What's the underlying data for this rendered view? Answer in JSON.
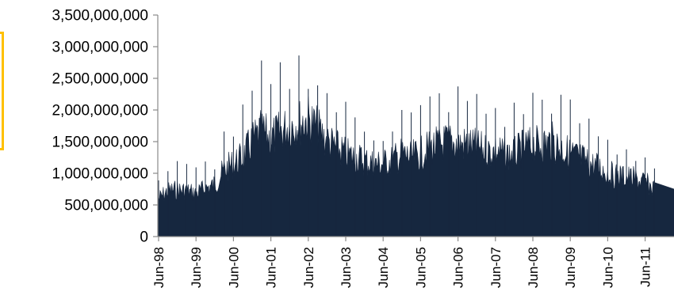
{
  "colors": {
    "series_fill": "#16273f",
    "axis": "#8a8a8a",
    "bracket": "#ffc000"
  },
  "chart_data": {
    "type": "area",
    "title": "",
    "xlabel": "",
    "ylabel": "",
    "ylim": [
      0,
      3500000000
    ],
    "y_ticks": [
      0,
      500000000,
      1000000000,
      1500000000,
      2000000000,
      2500000000,
      3000000000,
      3500000000
    ],
    "y_tick_labels": [
      "0",
      "500,000,000",
      "1,000,000,000",
      "1,500,000,000",
      "2,000,000,000",
      "2,500,000,000",
      "3,000,000,000",
      "3,500,000,000"
    ],
    "x_tick_labels": [
      "Jun-98",
      "Jun-99",
      "Jun-00",
      "Jun-01",
      "Jun-02",
      "Jun-03",
      "Jun-04",
      "Jun-05",
      "Jun-06",
      "Jun-07",
      "Jun-08",
      "Jun-09",
      "Jun-10",
      "Jun-11"
    ],
    "grid": false,
    "legend": "none",
    "series": [
      {
        "x": [
          "Jun-98",
          "Sep-98",
          "Dec-98",
          "Mar-99",
          "Jun-99",
          "Sep-99",
          "Dec-99",
          "Mar-00",
          "Jun-00",
          "Sep-00",
          "Dec-00",
          "Mar-01",
          "Jun-01",
          "Sep-01",
          "Dec-01",
          "Mar-02",
          "Jun-02",
          "Sep-02",
          "Dec-02",
          "Mar-03",
          "Jun-03",
          "Sep-03",
          "Dec-03",
          "Mar-04",
          "Jun-04",
          "Sep-04",
          "Dec-04",
          "Mar-05",
          "Jun-05",
          "Sep-05",
          "Dec-05",
          "Mar-06",
          "Jun-06",
          "Sep-06",
          "Dec-06",
          "Mar-07",
          "Jun-07",
          "Sep-07",
          "Dec-07",
          "Mar-08",
          "Jun-08",
          "Sep-08",
          "Dec-08",
          "Mar-09",
          "Jun-09",
          "Sep-09",
          "Dec-09",
          "Mar-10",
          "Jun-10",
          "Sep-10",
          "Dec-10",
          "Mar-11",
          "Jun-11",
          "Sep-11"
        ],
        "values": [
          600000000,
          720000000,
          740000000,
          720000000,
          680000000,
          760000000,
          820000000,
          1050000000,
          1150000000,
          1250000000,
          1500000000,
          1650000000,
          1550000000,
          1650000000,
          1750000000,
          1800000000,
          1850000000,
          1700000000,
          1500000000,
          1400000000,
          1300000000,
          1250000000,
          1200000000,
          1150000000,
          1150000000,
          1200000000,
          1300000000,
          1250000000,
          1300000000,
          1400000000,
          1450000000,
          1500000000,
          1450000000,
          1450000000,
          1400000000,
          1350000000,
          1350000000,
          1300000000,
          1300000000,
          1400000000,
          1450000000,
          1450000000,
          1500000000,
          1400000000,
          1300000000,
          1250000000,
          1150000000,
          1100000000,
          1000000000,
          950000000,
          950000000,
          900000000,
          850000000,
          750000000
        ]
      }
    ]
  }
}
